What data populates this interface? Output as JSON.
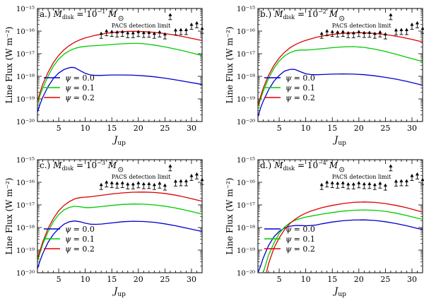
{
  "figure": {
    "background": "#ffffff"
  },
  "chart_data": [
    {
      "type": "line",
      "panel_label": "a.)",
      "title": "M_disk = 10^-1 M_⊙",
      "title_main": "M",
      "title_sub": "disk",
      "title_mid": " = 10",
      "title_exp": "−1",
      "title_tail": " M",
      "xlabel": "J_up",
      "xlabel_main": "J",
      "xlabel_sub": "up",
      "ylabel": "Line Flux (W m⁻²)",
      "xlim": [
        1,
        32
      ],
      "ylim": [
        1e-20,
        1e-15
      ],
      "yscale": "log",
      "x_ticks": [
        5,
        10,
        15,
        20,
        25,
        30
      ],
      "y_ticks": [
        "10⁻²⁰",
        "10⁻¹⁹",
        "10⁻¹⁸",
        "10⁻¹⁷",
        "10⁻¹⁶",
        "10⁻¹⁵"
      ],
      "series": [
        {
          "name": "ψ = 0.0",
          "color": "#0000cc",
          "x": [
            1,
            1.5,
            2,
            3,
            4,
            5,
            6,
            7,
            7.5,
            8,
            9,
            10,
            11,
            12,
            13,
            14,
            15,
            17,
            19,
            21,
            23,
            25,
            27,
            29,
            31,
            32
          ],
          "y": [
            2.6e-20,
            6e-20,
            1.2e-19,
            3.5e-19,
            8e-19,
            1.4e-18,
            2e-18,
            2.4e-18,
            2.5e-18,
            2.4e-18,
            1.8e-18,
            1.35e-18,
            1.15e-18,
            1.1e-18,
            1.1e-18,
            1.12e-18,
            1.15e-18,
            1.15e-18,
            1.12e-18,
            1.05e-18,
            9.5e-19,
            8.3e-19,
            7e-19,
            5.8e-19,
            4.8e-19,
            4.3e-19
          ]
        },
        {
          "name": "ψ = 0.1",
          "color": "#00cc00",
          "x": [
            1,
            1.5,
            2,
            3,
            4,
            5,
            6,
            7,
            8,
            9,
            10,
            11,
            13,
            15,
            17,
            19,
            20,
            21,
            23,
            25,
            27,
            29,
            31,
            32
          ],
          "y": [
            6e-20,
            1.5e-19,
            3e-19,
            1e-18,
            2.8e-18,
            5.8e-18,
            9.5e-18,
            1.35e-17,
            1.7e-17,
            1.95e-17,
            2.1e-17,
            2.2e-17,
            2.35e-17,
            2.55e-17,
            2.75e-17,
            2.85e-17,
            2.85e-17,
            2.75e-17,
            2.4e-17,
            2e-17,
            1.6e-17,
            1.25e-17,
            9.5e-18,
            8.3e-18
          ]
        },
        {
          "name": "ψ = 0.2",
          "color": "#dd0000",
          "x": [
            1,
            1.5,
            2,
            3,
            4,
            5,
            6,
            7,
            8,
            9,
            10,
            12,
            14,
            16,
            18,
            19,
            20,
            22,
            24,
            26,
            28,
            30,
            32
          ],
          "y": [
            8e-20,
            2e-19,
            4.5e-19,
            1.5e-18,
            4e-18,
            8.5e-18,
            1.5e-17,
            2.3e-17,
            3.2e-17,
            4.1e-17,
            5e-17,
            6.6e-17,
            8e-17,
            9.1e-17,
            9.7e-17,
            9.8e-17,
            9.7e-17,
            9.2e-17,
            8.3e-17,
            7.2e-17,
            6e-17,
            4.8e-17,
            3.8e-17
          ]
        }
      ],
      "limits": {
        "label": "PACS detection limit",
        "x": [
          13,
          14,
          15,
          16,
          17,
          18,
          19,
          20,
          21,
          22,
          23,
          24,
          25,
          26,
          27,
          28,
          29,
          30,
          31,
          32
        ],
        "y": [
          4.8e-17,
          6.2e-17,
          5.8e-17,
          5.5e-17,
          5.8e-17,
          5.1e-17,
          5.1e-17,
          5.7e-17,
          5.2e-17,
          5.3e-17,
          4.8e-17,
          5.5e-17,
          4.5e-17,
          3.2e-16,
          6.8e-17,
          7e-17,
          7e-17,
          1.2e-16,
          1.4e-16,
          8e-17
        ]
      },
      "legend": {
        "placement": "lower-left",
        "entries": [
          "ψ = 0.0",
          "ψ = 0.1",
          "ψ = 0.2"
        ],
        "psi": "ψ",
        "values": [
          "= 0.0",
          "= 0.1",
          "= 0.2"
        ]
      }
    },
    {
      "type": "line",
      "panel_label": "b.)",
      "title": "M_disk = 10^-2 M_⊙",
      "title_main": "M",
      "title_sub": "disk",
      "title_mid": " = 10",
      "title_exp": "−2",
      "title_tail": " M",
      "xlabel": "J_up",
      "xlabel_main": "J",
      "xlabel_sub": "up",
      "ylabel": "Line Flux (W m⁻²)",
      "xlim": [
        1,
        32
      ],
      "ylim": [
        1e-20,
        1e-15
      ],
      "yscale": "log",
      "x_ticks": [
        5,
        10,
        15,
        20,
        25,
        30
      ],
      "y_ticks": [
        "10⁻²⁰",
        "10⁻¹⁹",
        "10⁻¹⁸",
        "10⁻¹⁷",
        "10⁻¹⁶",
        "10⁻¹⁵"
      ],
      "series": [
        {
          "name": "ψ = 0.0",
          "color": "#0000cc",
          "x": [
            1,
            1.5,
            2,
            3,
            4,
            5,
            6,
            7,
            7.5,
            8,
            9,
            10,
            11,
            12,
            13,
            15,
            17,
            19,
            21,
            23,
            25,
            27,
            29,
            31,
            32
          ],
          "y": [
            1.6e-20,
            4e-20,
            8e-20,
            2.5e-19,
            6e-19,
            1.1e-18,
            1.7e-18,
            2e-18,
            2.05e-18,
            2e-18,
            1.6e-18,
            1.3e-18,
            1.2e-18,
            1.18e-18,
            1.2e-18,
            1.25e-18,
            1.28e-18,
            1.25e-18,
            1.18e-18,
            1.05e-18,
            9e-19,
            7.5e-19,
            6e-19,
            4.6e-19,
            4e-19
          ]
        },
        {
          "name": "ψ = 0.1",
          "color": "#00cc00",
          "x": [
            1,
            1.5,
            2,
            3,
            4,
            5,
            6,
            7,
            8,
            9,
            10,
            11,
            13,
            15,
            17,
            19,
            21,
            23,
            25,
            27,
            29,
            31,
            32
          ],
          "y": [
            4e-20,
            1e-19,
            2.2e-19,
            8e-19,
            2.2e-18,
            4.8e-18,
            8e-18,
            1.1e-17,
            1.35e-17,
            1.45e-17,
            1.45e-17,
            1.5e-17,
            1.65e-17,
            1.85e-17,
            2e-17,
            2.05e-17,
            1.9e-17,
            1.6e-17,
            1.25e-17,
            9.5e-18,
            7e-18,
            5.2e-18,
            4.5e-18
          ]
        },
        {
          "name": "ψ = 0.2",
          "color": "#dd0000",
          "x": [
            1,
            1.5,
            2,
            3,
            4,
            5,
            6,
            7,
            8,
            9,
            10,
            12,
            14,
            16,
            18,
            20,
            22,
            24,
            26,
            28,
            30,
            32
          ],
          "y": [
            5e-20,
            1.3e-19,
            3e-19,
            1.1e-18,
            3e-18,
            6.5e-18,
            1.15e-17,
            1.8e-17,
            2.5e-17,
            3.2e-17,
            3.9e-17,
            5.3e-17,
            6.6e-17,
            7.6e-17,
            8.3e-17,
            8.5e-17,
            8.2e-17,
            7.5e-17,
            6.5e-17,
            5.4e-17,
            4.3e-17,
            3.3e-17
          ]
        }
      ],
      "limits": {
        "label": "PACS detection limit",
        "x": [
          13,
          14,
          15,
          16,
          17,
          18,
          19,
          20,
          21,
          22,
          23,
          24,
          25,
          26,
          27,
          28,
          29,
          30,
          31,
          32
        ],
        "y": [
          4.8e-17,
          6.2e-17,
          5.8e-17,
          5.5e-17,
          5.8e-17,
          5.1e-17,
          5.1e-17,
          5.7e-17,
          5.2e-17,
          5.3e-17,
          4.8e-17,
          5.5e-17,
          4.5e-17,
          3.2e-16,
          6.8e-17,
          7e-17,
          7e-17,
          1.2e-16,
          1.4e-16,
          8e-17
        ]
      },
      "legend": {
        "placement": "lower-left",
        "entries": [
          "ψ = 0.0",
          "ψ = 0.1",
          "ψ = 0.2"
        ],
        "psi": "ψ",
        "values": [
          "= 0.0",
          "= 0.1",
          "= 0.2"
        ]
      }
    },
    {
      "type": "line",
      "panel_label": "c.)",
      "title": "M_disk = 10^-3 M_⊙",
      "title_main": "M",
      "title_sub": "disk",
      "title_mid": " = 10",
      "title_exp": "−3",
      "title_tail": " M",
      "xlabel": "J_up",
      "xlabel_main": "J",
      "xlabel_sub": "up",
      "ylabel": "Line Flux (W m⁻²)",
      "xlim": [
        1,
        32
      ],
      "ylim": [
        1e-20,
        1e-15
      ],
      "yscale": "log",
      "x_ticks": [
        5,
        10,
        15,
        20,
        25,
        30
      ],
      "y_ticks": [
        "10⁻²⁰",
        "10⁻¹⁹",
        "10⁻¹⁸",
        "10⁻¹⁷",
        "10⁻¹⁶",
        "10⁻¹⁵"
      ],
      "series": [
        {
          "name": "ψ = 0.0",
          "color": "#0000cc",
          "x": [
            1,
            1.5,
            2,
            3,
            4,
            5,
            6,
            7,
            8,
            9,
            10,
            11,
            12,
            13,
            15,
            17,
            19,
            21,
            23,
            25,
            27,
            29,
            31,
            32
          ],
          "y": [
            1.5e-20,
            3.5e-20,
            7e-20,
            2.2e-19,
            5e-19,
            9e-19,
            1.4e-18,
            1.8e-18,
            1.95e-18,
            1.8e-18,
            1.55e-18,
            1.4e-18,
            1.38e-18,
            1.42e-18,
            1.6e-18,
            1.8e-18,
            1.9e-18,
            1.85e-18,
            1.7e-18,
            1.45e-18,
            1.2e-18,
            9.5e-19,
            7.5e-19,
            6.7e-19
          ]
        },
        {
          "name": "ψ = 0.1",
          "color": "#00cc00",
          "x": [
            1,
            1.5,
            2,
            3,
            4,
            5,
            6,
            7,
            8,
            9,
            10,
            11,
            13,
            15,
            17,
            19,
            21,
            23,
            25,
            27,
            29,
            31,
            32
          ],
          "y": [
            3e-20,
            8e-20,
            1.8e-19,
            6.5e-19,
            1.8e-18,
            3.8e-18,
            6e-18,
            7.8e-18,
            8.7e-18,
            8.3e-18,
            7.6e-18,
            7.6e-18,
            8.4e-18,
            9.5e-18,
            1.05e-17,
            1.1e-17,
            1.08e-17,
            1e-17,
            8.8e-18,
            7.3e-18,
            5.8e-18,
            4.5e-18,
            3.9e-18
          ]
        },
        {
          "name": "ψ = 0.2",
          "color": "#dd0000",
          "x": [
            1,
            1.5,
            2,
            3,
            4,
            5,
            6,
            7,
            8,
            9,
            10,
            11,
            13,
            15,
            17,
            19,
            21,
            23,
            25,
            27,
            29,
            31,
            32
          ],
          "y": [
            4e-20,
            1e-19,
            2.3e-19,
            9e-19,
            2.5e-18,
            5.5e-18,
            9.5e-18,
            1.4e-17,
            1.85e-17,
            2.1e-17,
            2.2e-17,
            2.3e-17,
            2.65e-17,
            3.05e-17,
            3.4e-17,
            3.65e-17,
            3.7e-17,
            3.55e-17,
            3.2e-17,
            2.7e-17,
            2.15e-17,
            1.65e-17,
            1.45e-17
          ]
        }
      ],
      "limits": {
        "label": "PACS detection limit",
        "x": [
          13,
          14,
          15,
          16,
          17,
          18,
          19,
          20,
          21,
          22,
          23,
          24,
          25,
          26,
          27,
          28,
          29,
          30,
          31,
          32
        ],
        "y": [
          4.8e-17,
          6.2e-17,
          5.8e-17,
          5.5e-17,
          5.8e-17,
          5.1e-17,
          5.1e-17,
          5.7e-17,
          5.2e-17,
          5.3e-17,
          4.8e-17,
          5.5e-17,
          4.5e-17,
          3.2e-16,
          6.8e-17,
          7e-17,
          7e-17,
          1.2e-16,
          1.4e-16,
          8e-17
        ]
      },
      "legend": {
        "placement": "lower-left",
        "entries": [
          "ψ = 0.0",
          "ψ = 0.1",
          "ψ = 0.2"
        ],
        "psi": "ψ",
        "values": [
          "= 0.0",
          "= 0.1",
          "= 0.2"
        ]
      }
    },
    {
      "type": "line",
      "panel_label": "d.)",
      "title": "M_disk = 10^-4 M_⊙",
      "title_main": "M",
      "title_sub": "disk",
      "title_mid": " = 10",
      "title_exp": "−4",
      "title_tail": " M",
      "xlabel": "J_up",
      "xlabel_main": "J",
      "xlabel_sub": "up",
      "ylabel": "Line Flux (W m⁻²)",
      "xlim": [
        1,
        32
      ],
      "ylim": [
        1e-20,
        1e-15
      ],
      "yscale": "log",
      "x_ticks": [
        5,
        10,
        15,
        20,
        25,
        30
      ],
      "y_ticks": [
        "10⁻²⁰",
        "10⁻¹⁹",
        "10⁻¹⁸",
        "10⁻¹⁷",
        "10⁻¹⁶",
        "10⁻¹⁵"
      ],
      "series": [
        {
          "name": "ψ = 0.0",
          "color": "#0000cc",
          "x": [
            1,
            1.5,
            2,
            3,
            4,
            5,
            6,
            7,
            8,
            9,
            10,
            11,
            12,
            13,
            15,
            17,
            19,
            21,
            23,
            25,
            27,
            29,
            31,
            32
          ],
          "y": [
            1e-20,
            2e-20,
            4.5e-20,
            1.6e-19,
            3.8e-19,
            6.8e-19,
            9.5e-19,
            1.15e-18,
            1.22e-18,
            1.22e-18,
            1.2e-18,
            1.22e-18,
            1.3e-18,
            1.45e-18,
            1.75e-18,
            2e-18,
            2.15e-18,
            2.18e-18,
            2.05e-18,
            1.8e-18,
            1.5e-18,
            1.2e-18,
            9.2e-19,
            8.2e-19
          ]
        },
        {
          "name": "ψ = 0.1",
          "color": "#00cc00",
          "x": [
            2,
            2.5,
            3,
            4,
            5,
            6,
            7,
            8,
            9,
            10,
            11,
            13,
            15,
            17,
            19,
            21,
            23,
            25,
            27,
            29,
            31,
            32
          ],
          "y": [
            1e-20,
            2.5e-20,
            6e-20,
            2e-19,
            5.5e-19,
            1.05e-18,
            1.6e-18,
            2.1e-18,
            2.5e-18,
            2.9e-18,
            3.2e-18,
            3.9e-18,
            4.6e-18,
            5.3e-18,
            5.8e-18,
            6e-18,
            5.8e-18,
            5.2e-18,
            4.3e-18,
            3.4e-18,
            2.6e-18,
            2.3e-18
          ]
        },
        {
          "name": "ψ = 0.2",
          "color": "#dd0000",
          "x": [
            2.6,
            3,
            4,
            5,
            6,
            7,
            8,
            9,
            10,
            11,
            13,
            15,
            17,
            19,
            21,
            23,
            25,
            27,
            29,
            31,
            32
          ],
          "y": [
            1e-20,
            2.5e-20,
            1.2e-19,
            3.5e-19,
            8e-19,
            1.5e-18,
            2.3e-18,
            3.3e-18,
            4.3e-18,
            5.4e-18,
            7.5e-18,
            9.5e-18,
            1.15e-17,
            1.3e-17,
            1.35e-17,
            1.3e-17,
            1.15e-17,
            9.5e-18,
            7.5e-18,
            5.6e-18,
            4.8e-18
          ]
        }
      ],
      "limits": {
        "label": "PACS detection limit",
        "x": [
          13,
          14,
          15,
          16,
          17,
          18,
          19,
          20,
          21,
          22,
          23,
          24,
          25,
          26,
          27,
          28,
          29,
          30,
          31,
          32
        ],
        "y": [
          4.8e-17,
          6.2e-17,
          5.8e-17,
          5.5e-17,
          5.8e-17,
          5.1e-17,
          5.1e-17,
          5.7e-17,
          5.2e-17,
          5.3e-17,
          4.8e-17,
          5.5e-17,
          4.5e-17,
          3.2e-16,
          6.8e-17,
          7e-17,
          7e-17,
          1.2e-16,
          1.4e-16,
          8e-17
        ]
      },
      "legend": {
        "placement": "lower-left",
        "entries": [
          "ψ = 0.0",
          "ψ = 0.1",
          "ψ = 0.2"
        ],
        "psi": "ψ",
        "values": [
          "= 0.0",
          "= 0.1",
          "= 0.2"
        ]
      }
    }
  ]
}
